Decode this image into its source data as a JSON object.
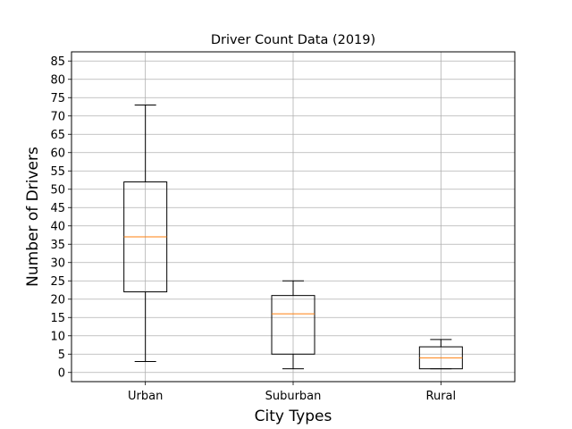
{
  "chart_data": {
    "type": "box",
    "title": "Driver Count Data (2019)",
    "xlabel": "City Types",
    "ylabel": "Number of Drivers",
    "ylim": [
      -2.5,
      87.5
    ],
    "yticks": [
      0,
      5,
      10,
      15,
      20,
      25,
      30,
      35,
      40,
      45,
      50,
      55,
      60,
      65,
      70,
      75,
      80,
      85
    ],
    "grid": true,
    "categories": [
      "Urban",
      "Suburban",
      "Rural"
    ],
    "boxes": [
      {
        "name": "Urban",
        "whisker_low": 3,
        "q1": 22,
        "median": 37,
        "q3": 52,
        "whisker_high": 73
      },
      {
        "name": "Suburban",
        "whisker_low": 1,
        "q1": 5,
        "median": 16,
        "q3": 21,
        "whisker_high": 25
      },
      {
        "name": "Rural",
        "whisker_low": 1,
        "q1": 1,
        "median": 4,
        "q3": 7,
        "whisker_high": 9
      }
    ],
    "colors": {
      "box": "#000000",
      "median": "#ff7f0e",
      "grid": "#b0b0b0"
    }
  }
}
